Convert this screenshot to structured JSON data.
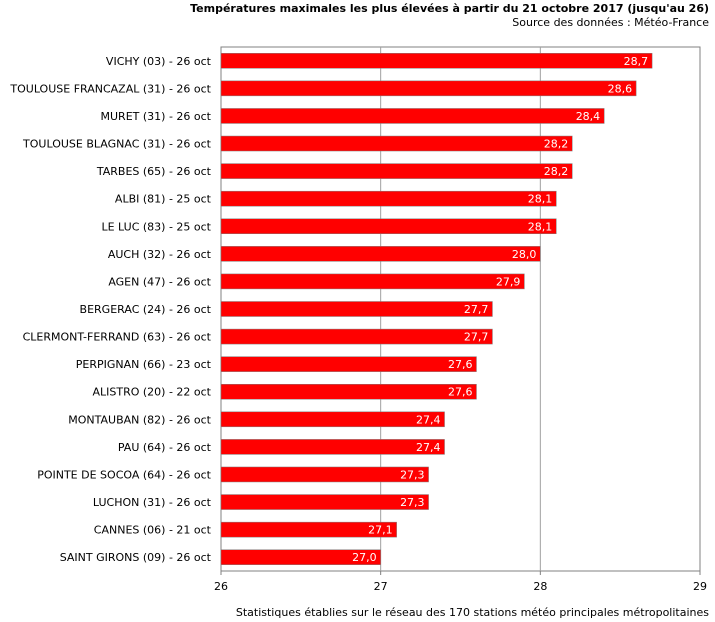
{
  "header": {
    "title": "Températures maximales les plus élevées à partir du 21 octobre 2017 (jusqu'au 26)",
    "subtitle": "Source des données : Météo-France"
  },
  "footer": {
    "note": "Statistiques établies sur le réseau des 170 stations météo principales métropolitaines"
  },
  "colors": {
    "bar": "#ff0000",
    "bar_edge": "#808080",
    "grid": "#a0a0a0"
  },
  "chart_data": {
    "type": "bar",
    "orientation": "horizontal",
    "title": "Températures maximales les plus élevées à partir du 21 octobre 2017 (jusqu'au 26)",
    "categories": [
      "VICHY (03) - 26 oct",
      "TOULOUSE FRANCAZAL (31) - 26 oct",
      "MURET (31) - 26 oct",
      "TOULOUSE BLAGNAC (31) - 26 oct",
      "TARBES (65) - 26 oct",
      "ALBI (81) - 25 oct",
      "LE LUC (83) - 25 oct",
      "AUCH (32) - 26 oct",
      "AGEN (47) - 26 oct",
      "BERGERAC (24) - 26 oct",
      "CLERMONT-FERRAND (63) - 26 oct",
      "PERPIGNAN (66) - 23 oct",
      "ALISTRO (20) - 22 oct",
      "MONTAUBAN (82) - 26 oct",
      "PAU (64) - 26 oct",
      "POINTE DE SOCOA (64) - 26 oct",
      "LUCHON (31) - 26 oct",
      "CANNES (06) - 21 oct",
      "SAINT GIRONS (09) - 26 oct"
    ],
    "values": [
      28.7,
      28.6,
      28.4,
      28.2,
      28.2,
      28.1,
      28.1,
      28.0,
      27.9,
      27.7,
      27.7,
      27.6,
      27.6,
      27.4,
      27.4,
      27.3,
      27.3,
      27.1,
      27.0
    ],
    "value_labels": [
      "28,7",
      "28,6",
      "28,4",
      "28,2",
      "28,2",
      "28,1",
      "28,1",
      "28,0",
      "27,9",
      "27,7",
      "27,7",
      "27,6",
      "27,6",
      "27,4",
      "27,4",
      "27,3",
      "27,3",
      "27,1",
      "27,0"
    ],
    "xlim": [
      26,
      29
    ],
    "xticks": [
      "26",
      "27",
      "28",
      "29"
    ],
    "grid": true,
    "xlabel": "",
    "ylabel": ""
  }
}
